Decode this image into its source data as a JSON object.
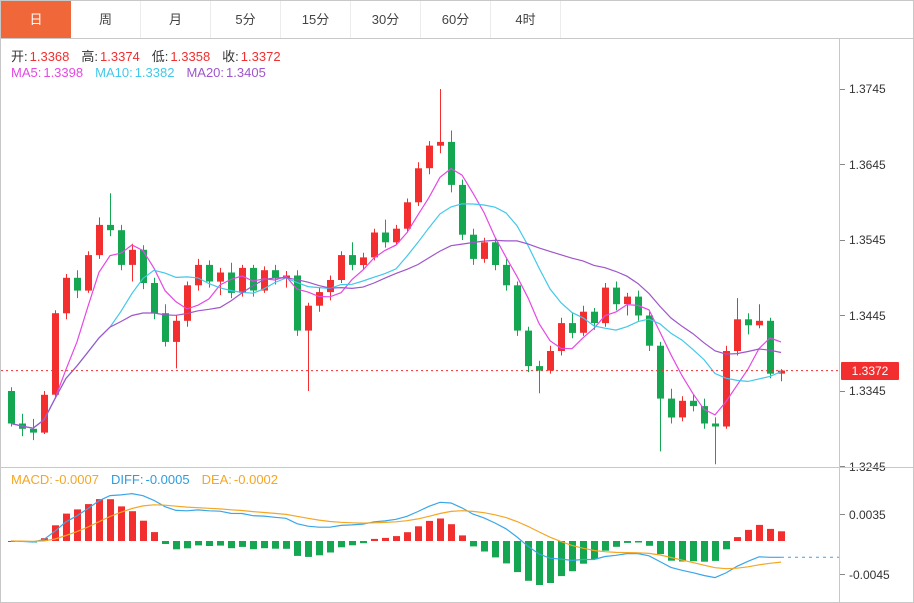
{
  "tabs": [
    {
      "label": "日",
      "active": true
    },
    {
      "label": "周"
    },
    {
      "label": "月"
    },
    {
      "label": "5分"
    },
    {
      "label": "15分"
    },
    {
      "label": "30分"
    },
    {
      "label": "60分"
    },
    {
      "label": "4时"
    }
  ],
  "ohlc_bar": {
    "open_label": "开:",
    "open_value": "1.3368",
    "high_label": "高:",
    "high_value": "1.3374",
    "low_label": "低:",
    "low_value": "1.3358",
    "close_label": "收:",
    "close_value": "1.3372"
  },
  "ma_bar": {
    "ma5_label": "MA5:",
    "ma5_value": "1.3398",
    "ma10_label": "MA10:",
    "ma10_value": "1.3382",
    "ma20_label": "MA20:",
    "ma20_value": "1.3405"
  },
  "macd_bar": {
    "macd_label": "MACD:",
    "macd_value": "-0.0007",
    "diff_label": "DIFF:",
    "diff_value": "-0.0005",
    "dea_label": "DEA:",
    "dea_value": "-0.0002"
  },
  "price_axis": {
    "tick_labels": [
      "1.3745",
      "1.3645",
      "1.3545",
      "1.3445",
      "1.3345",
      "1.3245"
    ],
    "last_price_label": "1.3372"
  },
  "macd_axis": {
    "tick_labels": [
      "0.0035",
      "-0.0045"
    ]
  },
  "colors": {
    "up": "#f22e2e",
    "down": "#14a651",
    "ma5": "#e548e5",
    "ma10": "#41c8ea",
    "ma20": "#9f55cb",
    "diff_line": "#3aa6e8",
    "dea_line": "#f5a623",
    "macd_text": "#f5a623",
    "diff_text": "#2d9de0",
    "dea_text": "#f5a623",
    "ohlc_value": "#f22e2e",
    "label_text": "#333333",
    "axis_text": "#333333",
    "accent_tab": "#f0683a",
    "badge_bg": "#f22e2e"
  },
  "chart_data": {
    "type": "candlestick",
    "timeframe_selected": "日",
    "color_convention": "red-up-green-down",
    "last_price": 1.3372,
    "y_axis_ticks": [
      1.3745,
      1.3645,
      1.3545,
      1.3445,
      1.3345,
      1.3245
    ],
    "overlays": [
      {
        "name": "MA5",
        "period": 5,
        "current": 1.3398
      },
      {
        "name": "MA10",
        "period": 10,
        "current": 1.3382
      },
      {
        "name": "MA20",
        "period": 20,
        "current": 1.3405
      }
    ],
    "sub_panel": {
      "type": "macd",
      "params": [
        12,
        26,
        9
      ],
      "displayed": {
        "macd": -0.0007,
        "diff": -0.0005,
        "dea": -0.0002
      },
      "y_axis_ticks": [
        0.0035,
        -0.0045
      ]
    },
    "candles_ohlc": [
      [
        1.3345,
        1.335,
        1.3298,
        1.3302
      ],
      [
        1.3302,
        1.3315,
        1.3285,
        1.3295
      ],
      [
        1.3295,
        1.3308,
        1.328,
        1.329
      ],
      [
        1.329,
        1.3345,
        1.3288,
        1.334
      ],
      [
        1.334,
        1.3452,
        1.3335,
        1.3448
      ],
      [
        1.3448,
        1.35,
        1.344,
        1.3495
      ],
      [
        1.3495,
        1.3505,
        1.3468,
        1.3478
      ],
      [
        1.3478,
        1.353,
        1.3475,
        1.3525
      ],
      [
        1.3525,
        1.3575,
        1.352,
        1.3565
      ],
      [
        1.3565,
        1.3607,
        1.355,
        1.3558
      ],
      [
        1.3558,
        1.3565,
        1.3505,
        1.3512
      ],
      [
        1.3512,
        1.354,
        1.349,
        1.3532
      ],
      [
        1.3532,
        1.3538,
        1.348,
        1.3488
      ],
      [
        1.3488,
        1.3495,
        1.344,
        1.3448
      ],
      [
        1.3448,
        1.346,
        1.3404,
        1.341
      ],
      [
        1.341,
        1.3445,
        1.3375,
        1.3438
      ],
      [
        1.3438,
        1.349,
        1.343,
        1.3485
      ],
      [
        1.3485,
        1.352,
        1.3478,
        1.3512
      ],
      [
        1.3512,
        1.3518,
        1.3482,
        1.349
      ],
      [
        1.349,
        1.3508,
        1.3472,
        1.3502
      ],
      [
        1.3502,
        1.3515,
        1.3468,
        1.3475
      ],
      [
        1.3475,
        1.3512,
        1.347,
        1.3508
      ],
      [
        1.3508,
        1.3512,
        1.347,
        1.3478
      ],
      [
        1.3478,
        1.351,
        1.3475,
        1.3505
      ],
      [
        1.3505,
        1.3512,
        1.3486,
        1.3494
      ],
      [
        1.3494,
        1.3504,
        1.3482,
        1.3498
      ],
      [
        1.3498,
        1.3505,
        1.3418,
        1.3425
      ],
      [
        1.3425,
        1.3462,
        1.3345,
        1.3458
      ],
      [
        1.3458,
        1.3482,
        1.345,
        1.3476
      ],
      [
        1.3476,
        1.3498,
        1.3465,
        1.3492
      ],
      [
        1.3492,
        1.353,
        1.3488,
        1.3525
      ],
      [
        1.3525,
        1.3542,
        1.3505,
        1.3512
      ],
      [
        1.3512,
        1.3528,
        1.3506,
        1.3522
      ],
      [
        1.3522,
        1.356,
        1.3518,
        1.3555
      ],
      [
        1.3555,
        1.3572,
        1.3535,
        1.3542
      ],
      [
        1.3542,
        1.3565,
        1.3538,
        1.356
      ],
      [
        1.356,
        1.36,
        1.3555,
        1.3595
      ],
      [
        1.3595,
        1.3648,
        1.359,
        1.364
      ],
      [
        1.364,
        1.3676,
        1.3632,
        1.367
      ],
      [
        1.367,
        1.3745,
        1.366,
        1.3675
      ],
      [
        1.3675,
        1.369,
        1.3608,
        1.3618
      ],
      [
        1.3618,
        1.3625,
        1.3545,
        1.3552
      ],
      [
        1.3552,
        1.356,
        1.3512,
        1.352
      ],
      [
        1.352,
        1.3548,
        1.3515,
        1.3542
      ],
      [
        1.3542,
        1.3548,
        1.3505,
        1.3512
      ],
      [
        1.3512,
        1.352,
        1.3478,
        1.3485
      ],
      [
        1.3485,
        1.349,
        1.3418,
        1.3425
      ],
      [
        1.3425,
        1.343,
        1.337,
        1.3378
      ],
      [
        1.3378,
        1.3385,
        1.3342,
        1.3372
      ],
      [
        1.3372,
        1.3405,
        1.3368,
        1.3398
      ],
      [
        1.3398,
        1.3442,
        1.3392,
        1.3435
      ],
      [
        1.3435,
        1.3448,
        1.3415,
        1.3422
      ],
      [
        1.3422,
        1.3458,
        1.3418,
        1.345
      ],
      [
        1.345,
        1.3455,
        1.3426,
        1.3435
      ],
      [
        1.3435,
        1.3488,
        1.343,
        1.3482
      ],
      [
        1.3482,
        1.349,
        1.3452,
        1.346
      ],
      [
        1.346,
        1.3475,
        1.3445,
        1.347
      ],
      [
        1.347,
        1.3478,
        1.3438,
        1.3445
      ],
      [
        1.3445,
        1.345,
        1.3398,
        1.3405
      ],
      [
        1.3405,
        1.341,
        1.3265,
        1.3335
      ],
      [
        1.3335,
        1.3348,
        1.3302,
        1.331
      ],
      [
        1.331,
        1.3338,
        1.3305,
        1.3332
      ],
      [
        1.3332,
        1.334,
        1.3318,
        1.3325
      ],
      [
        1.3325,
        1.3335,
        1.3295,
        1.3302
      ],
      [
        1.3302,
        1.331,
        1.3248,
        1.3298
      ],
      [
        1.3298,
        1.3405,
        1.3295,
        1.3398
      ],
      [
        1.3398,
        1.3468,
        1.3392,
        1.344
      ],
      [
        1.344,
        1.3448,
        1.342,
        1.3432
      ],
      [
        1.3432,
        1.346,
        1.3428,
        1.3438
      ],
      [
        1.3438,
        1.3442,
        1.3362,
        1.3368
      ],
      [
        1.3368,
        1.3374,
        1.3358,
        1.3372
      ]
    ]
  }
}
